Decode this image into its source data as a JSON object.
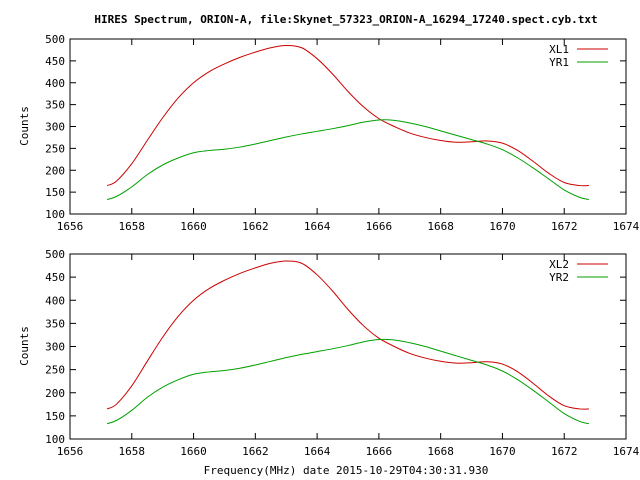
{
  "title": "HIRES Spectrum, ORION-A, file:Skynet_57323_ORION-A_16294_17240.spect.cyb.txt",
  "xlabel": "Frequency(MHz) date 2015-10-29T04:30:31.930",
  "colors": {
    "series_a": "#cc0000",
    "series_b": "#00a000"
  },
  "chart_data": [
    {
      "type": "line",
      "ylabel": "Counts",
      "xlim": [
        1656,
        1674
      ],
      "ylim": [
        100,
        500
      ],
      "xticks": [
        1656,
        1658,
        1660,
        1662,
        1664,
        1666,
        1668,
        1670,
        1672,
        1674
      ],
      "yticks": [
        100,
        150,
        200,
        250,
        300,
        350,
        400,
        450,
        500
      ],
      "legend_position": "top-right",
      "series": [
        {
          "name": "XL1",
          "x": [
            1657.2,
            1657.5,
            1658.0,
            1658.5,
            1659.0,
            1659.5,
            1660.0,
            1660.5,
            1661.0,
            1661.5,
            1662.0,
            1662.5,
            1663.0,
            1663.5,
            1664.0,
            1664.5,
            1665.0,
            1665.5,
            1666.0,
            1666.5,
            1667.0,
            1667.5,
            1668.0,
            1668.5,
            1669.0,
            1669.5,
            1670.0,
            1670.5,
            1671.0,
            1671.5,
            1672.0,
            1672.5,
            1672.8
          ],
          "y": [
            165,
            175,
            215,
            268,
            320,
            365,
            400,
            425,
            443,
            458,
            470,
            480,
            485,
            480,
            455,
            420,
            380,
            345,
            318,
            300,
            285,
            275,
            268,
            264,
            265,
            267,
            262,
            245,
            220,
            193,
            172,
            165,
            165
          ]
        },
        {
          "name": "YR1",
          "x": [
            1657.2,
            1657.5,
            1658.0,
            1658.5,
            1659.0,
            1659.5,
            1660.0,
            1660.5,
            1661.0,
            1661.5,
            1662.0,
            1662.5,
            1663.0,
            1663.5,
            1664.0,
            1664.5,
            1665.0,
            1665.5,
            1666.0,
            1666.5,
            1667.0,
            1667.5,
            1668.0,
            1668.5,
            1669.0,
            1669.5,
            1670.0,
            1670.5,
            1671.0,
            1671.5,
            1672.0,
            1672.5,
            1672.8
          ],
          "y": [
            133,
            140,
            162,
            190,
            212,
            228,
            240,
            245,
            248,
            253,
            260,
            268,
            276,
            283,
            289,
            295,
            302,
            310,
            315,
            314,
            308,
            300,
            290,
            280,
            270,
            260,
            247,
            228,
            205,
            180,
            155,
            138,
            133
          ]
        }
      ]
    },
    {
      "type": "line",
      "ylabel": "Counts",
      "xlim": [
        1656,
        1674
      ],
      "ylim": [
        100,
        500
      ],
      "xticks": [
        1656,
        1658,
        1660,
        1662,
        1664,
        1666,
        1668,
        1670,
        1672,
        1674
      ],
      "yticks": [
        100,
        150,
        200,
        250,
        300,
        350,
        400,
        450,
        500
      ],
      "legend_position": "top-right",
      "series": [
        {
          "name": "XL2",
          "x": [
            1657.2,
            1657.5,
            1658.0,
            1658.5,
            1659.0,
            1659.5,
            1660.0,
            1660.5,
            1661.0,
            1661.5,
            1662.0,
            1662.5,
            1663.0,
            1663.5,
            1664.0,
            1664.5,
            1665.0,
            1665.5,
            1666.0,
            1666.5,
            1667.0,
            1667.5,
            1668.0,
            1668.5,
            1669.0,
            1669.5,
            1670.0,
            1670.5,
            1671.0,
            1671.5,
            1672.0,
            1672.5,
            1672.8
          ],
          "y": [
            165,
            175,
            215,
            268,
            320,
            365,
            400,
            425,
            443,
            458,
            470,
            480,
            485,
            480,
            455,
            420,
            380,
            345,
            318,
            300,
            285,
            275,
            268,
            264,
            265,
            267,
            262,
            245,
            220,
            193,
            172,
            165,
            165
          ]
        },
        {
          "name": "YR2",
          "x": [
            1657.2,
            1657.5,
            1658.0,
            1658.5,
            1659.0,
            1659.5,
            1660.0,
            1660.5,
            1661.0,
            1661.5,
            1662.0,
            1662.5,
            1663.0,
            1663.5,
            1664.0,
            1664.5,
            1665.0,
            1665.5,
            1666.0,
            1666.5,
            1667.0,
            1667.5,
            1668.0,
            1668.5,
            1669.0,
            1669.5,
            1670.0,
            1670.5,
            1671.0,
            1671.5,
            1672.0,
            1672.5,
            1672.8
          ],
          "y": [
            133,
            140,
            162,
            190,
            212,
            228,
            240,
            245,
            248,
            253,
            260,
            268,
            276,
            283,
            289,
            295,
            302,
            310,
            315,
            314,
            308,
            300,
            290,
            280,
            270,
            260,
            247,
            228,
            205,
            180,
            155,
            138,
            133
          ]
        }
      ]
    }
  ]
}
